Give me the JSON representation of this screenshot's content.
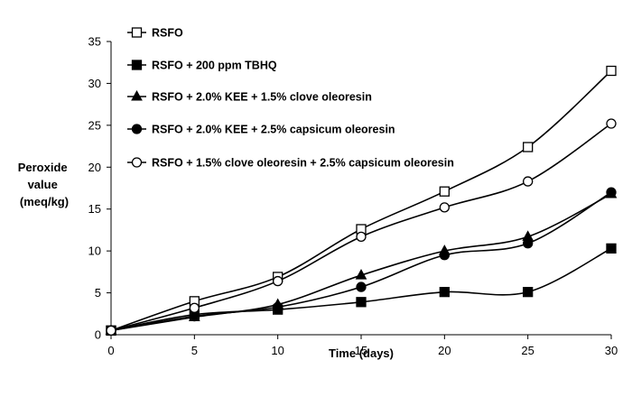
{
  "chart_data": {
    "type": "line",
    "xlabel": "Time (days)",
    "ylabel_lines": [
      "Peroxide",
      "value",
      "(meq/kg)"
    ],
    "x": [
      0,
      5,
      10,
      15,
      20,
      25,
      30
    ],
    "xlim": [
      0,
      30
    ],
    "ylim": [
      0,
      35
    ],
    "x_ticks": [
      "0",
      "5",
      "10",
      "15",
      "20",
      "25",
      "30"
    ],
    "y_ticks": [
      "0",
      "5",
      "10",
      "15",
      "20",
      "25",
      "30",
      "35"
    ],
    "grid": false,
    "legend_position": "top-left",
    "series": [
      {
        "name": "RSFO",
        "marker": "square-open",
        "values": [
          0.5,
          4.0,
          6.9,
          12.6,
          17.1,
          22.4,
          31.5
        ]
      },
      {
        "name": "RSFO + 200 ppm TBHQ",
        "marker": "square-filled",
        "values": [
          0.5,
          2.4,
          3.0,
          3.9,
          5.1,
          5.1,
          10.3
        ]
      },
      {
        "name": "RSFO + 2.0% KEE + 1.5% clove oleoresin",
        "marker": "triangle-filled",
        "values": [
          0.5,
          2.1,
          3.6,
          7.1,
          10.0,
          11.7,
          16.8
        ]
      },
      {
        "name": "RSFO + 2.0% KEE + 2.5% capsicum oleoresin",
        "marker": "circle-filled",
        "values": [
          0.5,
          2.2,
          3.3,
          5.7,
          9.5,
          10.9,
          17.0
        ]
      },
      {
        "name": "RSFO + 1.5% clove oleoresin + 2.5% capsicum oleoresin",
        "marker": "circle-open",
        "values": [
          0.5,
          3.2,
          6.4,
          11.7,
          15.2,
          18.3,
          25.2
        ]
      }
    ],
    "colors": {
      "line": "#000000",
      "background": "#ffffff"
    }
  }
}
